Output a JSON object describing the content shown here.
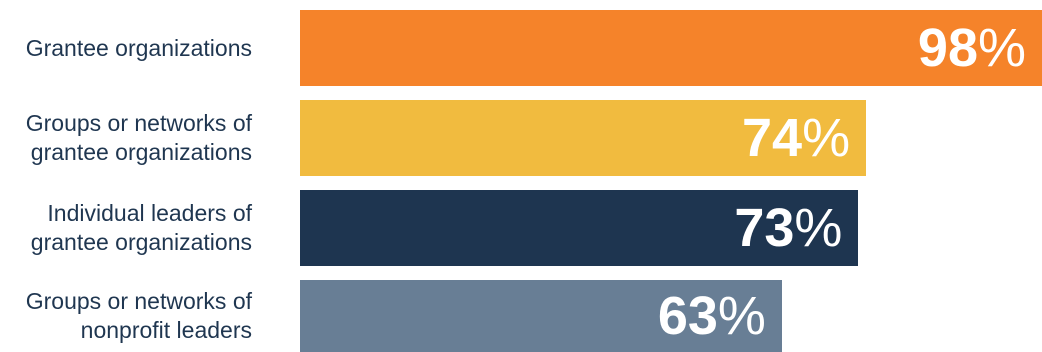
{
  "chart_data": {
    "type": "bar",
    "orientation": "horizontal",
    "categories": [
      "Grantee organizations",
      "Groups or networks of grantee organizations",
      "Individual leaders of grantee organizations",
      "Groups or networks of nonprofit leaders"
    ],
    "values": [
      98,
      74,
      73,
      63
    ],
    "value_suffix": "%",
    "xlim": [
      0,
      100
    ],
    "grid": false,
    "legend": false,
    "colors": [
      "#F5832A",
      "#F1BB3F",
      "#1E3550",
      "#687E95"
    ],
    "label_color": "#1F3650"
  }
}
